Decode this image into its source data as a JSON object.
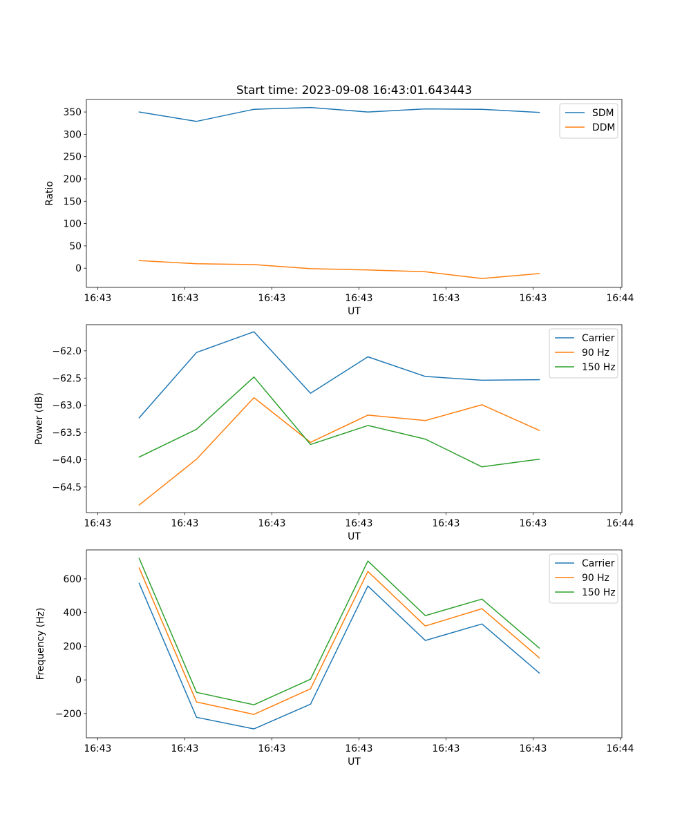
{
  "figure_title": "Start time: 2023-09-08 16:43:01.643443",
  "colors": {
    "blue": "#1f77b4",
    "orange": "#ff7f0e",
    "green": "#2ca02c"
  },
  "chart_data": [
    {
      "type": "line",
      "title": "Start time: 2023-09-08 16:43:01.643443",
      "xlabel": "UT",
      "ylabel": "Ratio",
      "x_tick_labels": [
        "16:43",
        "16:43",
        "16:43",
        "16:43",
        "16:43",
        "16:43",
        "16:44"
      ],
      "x_tick_values": [
        0,
        1,
        2,
        3,
        4,
        5,
        6
      ],
      "xlim": [
        -0.13,
        6.02
      ],
      "y_ticks": [
        0,
        50,
        100,
        150,
        200,
        250,
        300,
        350
      ],
      "y_tick_labels": [
        "0",
        "50",
        "100",
        "150",
        "200",
        "250",
        "300",
        "350"
      ],
      "ylim": [
        -43,
        378
      ],
      "x": [
        0.476,
        1.135,
        1.794,
        2.444,
        3.103,
        3.762,
        4.413,
        5.071
      ],
      "series": [
        {
          "name": "SDM",
          "color": "#1f77b4",
          "values": [
            350,
            329,
            356,
            360,
            350,
            357,
            356,
            349
          ]
        },
        {
          "name": "DDM",
          "color": "#ff7f0e",
          "values": [
            17,
            10,
            8,
            -1,
            -4,
            -8,
            -23,
            -12
          ]
        }
      ],
      "legend": "top-right",
      "grid": false
    },
    {
      "type": "line",
      "title": "",
      "xlabel": "UT",
      "ylabel": "Power (dB)",
      "x_tick_labels": [
        "16:43",
        "16:43",
        "16:43",
        "16:43",
        "16:43",
        "16:43",
        "16:44"
      ],
      "x_tick_values": [
        0,
        1,
        2,
        3,
        4,
        5,
        6
      ],
      "xlim": [
        -0.13,
        6.02
      ],
      "y_ticks": [
        -64.5,
        -64.0,
        -63.5,
        -63.0,
        -62.5,
        -62.0
      ],
      "y_tick_labels": [
        "−64.5",
        "−64.0",
        "−63.5",
        "−63.0",
        "−62.5",
        "−62.0"
      ],
      "ylim": [
        -64.97,
        -61.52
      ],
      "x": [
        0.476,
        1.135,
        1.794,
        2.444,
        3.103,
        3.762,
        4.413,
        5.071
      ],
      "series": [
        {
          "name": "Carrier",
          "color": "#1f77b4",
          "values": [
            -63.23,
            -62.03,
            -61.65,
            -62.78,
            -62.11,
            -62.47,
            -62.54,
            -62.53
          ]
        },
        {
          "name": "90 Hz",
          "color": "#ff7f0e",
          "values": [
            -64.83,
            -63.99,
            -62.86,
            -63.68,
            -63.18,
            -63.28,
            -62.99,
            -63.46
          ]
        },
        {
          "name": "150 Hz",
          "color": "#2ca02c",
          "values": [
            -63.95,
            -63.44,
            -62.48,
            -63.72,
            -63.37,
            -63.62,
            -64.13,
            -63.99
          ]
        }
      ],
      "legend": "top-right",
      "grid": false
    },
    {
      "type": "line",
      "title": "",
      "xlabel": "UT",
      "ylabel": "Frequency (Hz)",
      "x_tick_labels": [
        "16:43",
        "16:43",
        "16:43",
        "16:43",
        "16:43",
        "16:43",
        "16:44"
      ],
      "x_tick_values": [
        0,
        1,
        2,
        3,
        4,
        5,
        6
      ],
      "xlim": [
        -0.13,
        6.02
      ],
      "y_ticks": [
        -200,
        0,
        200,
        400,
        600
      ],
      "y_tick_labels": [
        "−200",
        "0",
        "200",
        "400",
        "600"
      ],
      "ylim": [
        -344,
        772
      ],
      "x": [
        0.476,
        1.135,
        1.794,
        2.444,
        3.103,
        3.762,
        4.413,
        5.071
      ],
      "series": [
        {
          "name": "Carrier",
          "color": "#1f77b4",
          "values": [
            574,
            -222,
            -291,
            -144,
            558,
            234,
            332,
            41
          ]
        },
        {
          "name": "90 Hz",
          "color": "#ff7f0e",
          "values": [
            665,
            -131,
            -205,
            -53,
            644,
            320,
            423,
            131
          ]
        },
        {
          "name": "150 Hz",
          "color": "#2ca02c",
          "values": [
            722,
            -74,
            -148,
            4,
            706,
            382,
            480,
            189
          ]
        }
      ],
      "legend": "top-right",
      "grid": false
    }
  ]
}
